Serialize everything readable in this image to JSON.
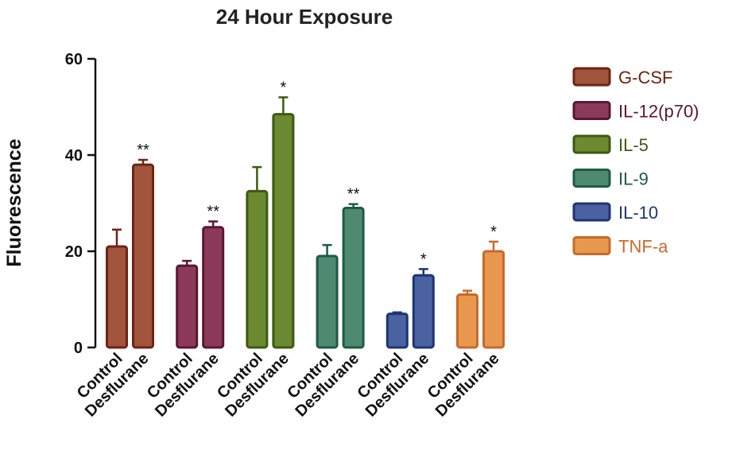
{
  "chart_data": {
    "type": "bar",
    "title": "24 Hour Exposure",
    "xlabel": "",
    "ylabel": "Fluorescence",
    "ylim": [
      0,
      60
    ],
    "yticks": [
      0,
      20,
      40,
      60
    ],
    "grid": false,
    "legend_position": "right",
    "bar_labels": [
      "Control",
      "Desflurane"
    ],
    "groups": [
      {
        "name": "G-CSF",
        "fill": "#a0553c",
        "stroke": "#6e2412",
        "text_color": "#6e2412",
        "values": [
          21,
          38
        ],
        "errors": [
          3.5,
          1
        ],
        "significance": [
          "",
          "**"
        ]
      },
      {
        "name": "IL-12(p70)",
        "fill": "#8c3a5a",
        "stroke": "#5c1535",
        "text_color": "#5c1535",
        "values": [
          17,
          25
        ],
        "errors": [
          1,
          1.2
        ],
        "significance": [
          "",
          "**"
        ]
      },
      {
        "name": "IL-5",
        "fill": "#6b8a32",
        "stroke": "#3d5a10",
        "text_color": "#3d5a10",
        "values": [
          32.5,
          48.5
        ],
        "errors": [
          5,
          3.5
        ],
        "significance": [
          "",
          "*"
        ]
      },
      {
        "name": "IL-9",
        "fill": "#4e8a70",
        "stroke": "#1e5a45",
        "text_color": "#1e5a45",
        "values": [
          19,
          29
        ],
        "errors": [
          2.3,
          0.8
        ],
        "significance": [
          "",
          "**"
        ]
      },
      {
        "name": "IL-10",
        "fill": "#4a62a0",
        "stroke": "#1c3578",
        "text_color": "#1c3578",
        "values": [
          7,
          15
        ],
        "errors": [
          0.3,
          1.3
        ],
        "significance": [
          "",
          "*"
        ]
      },
      {
        "name": "TNF-a",
        "fill": "#e8984e",
        "stroke": "#c86a2a",
        "text_color": "#c86a2a",
        "values": [
          11,
          20
        ],
        "errors": [
          0.8,
          2
        ],
        "significance": [
          "",
          "*"
        ]
      }
    ]
  }
}
